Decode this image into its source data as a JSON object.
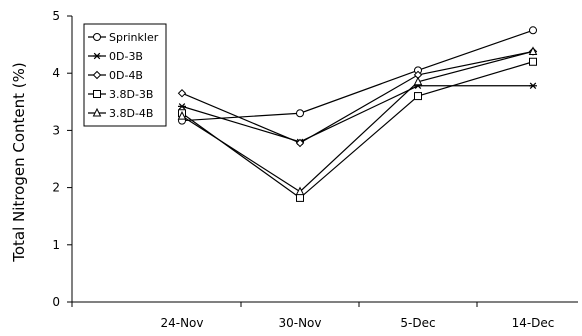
{
  "chart_data": {
    "type": "line",
    "title": "",
    "xlabel": "",
    "ylabel": "Total Nitrogen Content (%)",
    "categories": [
      "24-Nov",
      "30-Nov",
      "5-Dec",
      "14-Dec"
    ],
    "ylim": [
      0,
      5
    ],
    "yticks": [
      0,
      1,
      2,
      3,
      4,
      5
    ],
    "grid": false,
    "legend_position": "top-left",
    "series": [
      {
        "name": "Sprinkler",
        "marker": "circle",
        "values": [
          3.17,
          3.3,
          4.05,
          4.75
        ]
      },
      {
        "name": "0D-3B",
        "marker": "asterisk",
        "values": [
          3.42,
          2.8,
          3.78,
          3.78
        ]
      },
      {
        "name": "0D-4B",
        "marker": "diamond",
        "values": [
          3.65,
          2.78,
          3.97,
          4.38
        ]
      },
      {
        "name": "3.8D-3B",
        "marker": "square",
        "values": [
          3.3,
          1.82,
          3.6,
          4.2
        ]
      },
      {
        "name": "3.8D-4B",
        "marker": "triangle",
        "values": [
          3.25,
          1.93,
          3.85,
          4.38
        ]
      }
    ]
  }
}
